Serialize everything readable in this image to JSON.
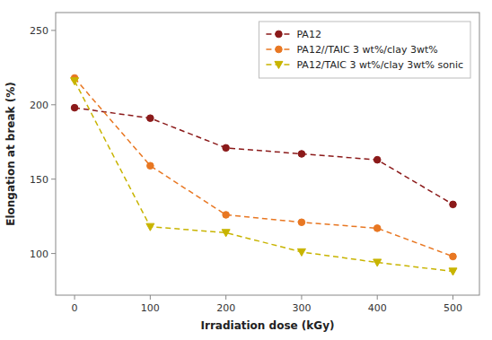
{
  "chart_data": {
    "type": "line",
    "x": [
      0,
      100,
      200,
      300,
      400,
      500
    ],
    "series": [
      {
        "name": "PA12",
        "color": "#8B1A1A",
        "marker": "circle",
        "values": [
          198,
          191,
          171,
          167,
          163,
          133
        ]
      },
      {
        "name": "PA12//TAIC 3 wt%/clay 3wt%",
        "color": "#E87722",
        "marker": "circle",
        "values": [
          218,
          159,
          126,
          121,
          117,
          98
        ]
      },
      {
        "name": "PA12/TAIC 3 wt%/clay 3wt% sonic",
        "color": "#C8B400",
        "marker": "triangle-down",
        "values": [
          216,
          118,
          114,
          101,
          94,
          88
        ]
      }
    ],
    "xlabel": "Irradiation dose (kGy)",
    "ylabel": "Elongation at break (%)",
    "xlim": [
      -25,
      535
    ],
    "ylim": [
      72,
      262
    ],
    "xticks": [
      0,
      100,
      200,
      300,
      400,
      500
    ],
    "yticks": [
      100,
      150,
      200,
      250
    ],
    "line_style": "dashed",
    "grid": false,
    "legend": "upper right"
  }
}
